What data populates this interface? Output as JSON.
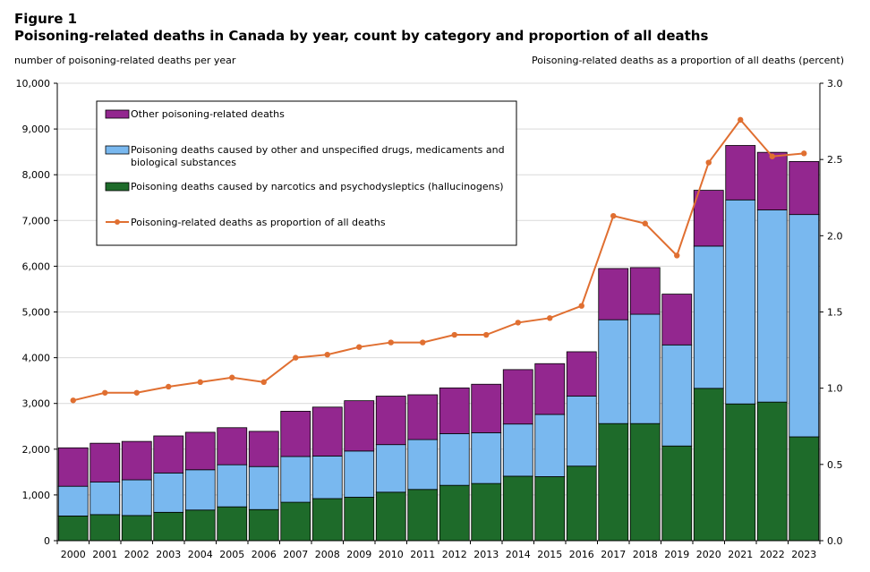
{
  "figure": {
    "label": "Figure 1",
    "title": "Poisoning-related deaths in Canada by year, count by category and proportion of all deaths",
    "left_axis_title": "number of poisoning-related deaths per year",
    "right_axis_title": "Poisoning-related deaths as a proportion of all deaths (percent)"
  },
  "chart_data": {
    "type": "bar",
    "stacked": true,
    "categories": [
      "2000",
      "2001",
      "2002",
      "2003",
      "2004",
      "2005",
      "2006",
      "2007",
      "2008",
      "2009",
      "2010",
      "2011",
      "2012",
      "2013",
      "2014",
      "2015",
      "2016",
      "2017",
      "2018",
      "2019",
      "2020",
      "2021",
      "2022",
      "2023"
    ],
    "ylim": [
      0,
      10000
    ],
    "y_ticks": [
      "0",
      "1,000",
      "2,000",
      "3,000",
      "4,000",
      "5,000",
      "6,000",
      "7,000",
      "8,000",
      "9,000",
      "10,000"
    ],
    "y2lim": [
      0,
      3.0
    ],
    "y2_ticks": [
      "0.0",
      "0.5",
      "1.0",
      "1.5",
      "2.0",
      "2.5",
      "3.0"
    ],
    "grid": true,
    "legend_position": "top-left",
    "series": [
      {
        "name": "Poisoning deaths caused by narcotics and psychodysleptics (hallucinogens)",
        "color": "#1e6b2a",
        "values": [
          540,
          570,
          550,
          620,
          670,
          740,
          680,
          840,
          920,
          950,
          1060,
          1120,
          1210,
          1250,
          1410,
          1400,
          1630,
          2560,
          2560,
          2070,
          3330,
          2990,
          3030,
          2270
        ]
      },
      {
        "name": "Poisoning deaths caused by other and unspecified drugs, medicaments and biological substances",
        "name_lines": [
          "Poisoning deaths caused by other and unspecified drugs, medicaments and",
          "biological substances"
        ],
        "color": "#79b8ef",
        "values": [
          650,
          710,
          780,
          860,
          880,
          920,
          940,
          1000,
          930,
          1010,
          1040,
          1090,
          1130,
          1110,
          1140,
          1360,
          1530,
          2270,
          2390,
          2210,
          3110,
          4460,
          4200,
          4860
        ]
      },
      {
        "name": "Other poisoning-related deaths",
        "color": "#93278f",
        "values": [
          840,
          850,
          840,
          810,
          820,
          810,
          770,
          990,
          1070,
          1100,
          1060,
          980,
          1000,
          1060,
          1190,
          1110,
          970,
          1120,
          1020,
          1110,
          1220,
          1190,
          1260,
          1160
        ]
      }
    ],
    "line": {
      "name": "Poisoning-related deaths as proportion of all deaths",
      "color": "#e06f31",
      "axis": "right",
      "values": [
        0.92,
        0.97,
        0.97,
        1.01,
        1.04,
        1.07,
        1.04,
        1.2,
        1.22,
        1.27,
        1.3,
        1.3,
        1.35,
        1.35,
        1.43,
        1.46,
        1.54,
        2.13,
        2.08,
        1.87,
        2.48,
        2.76,
        2.52,
        2.54
      ]
    }
  }
}
